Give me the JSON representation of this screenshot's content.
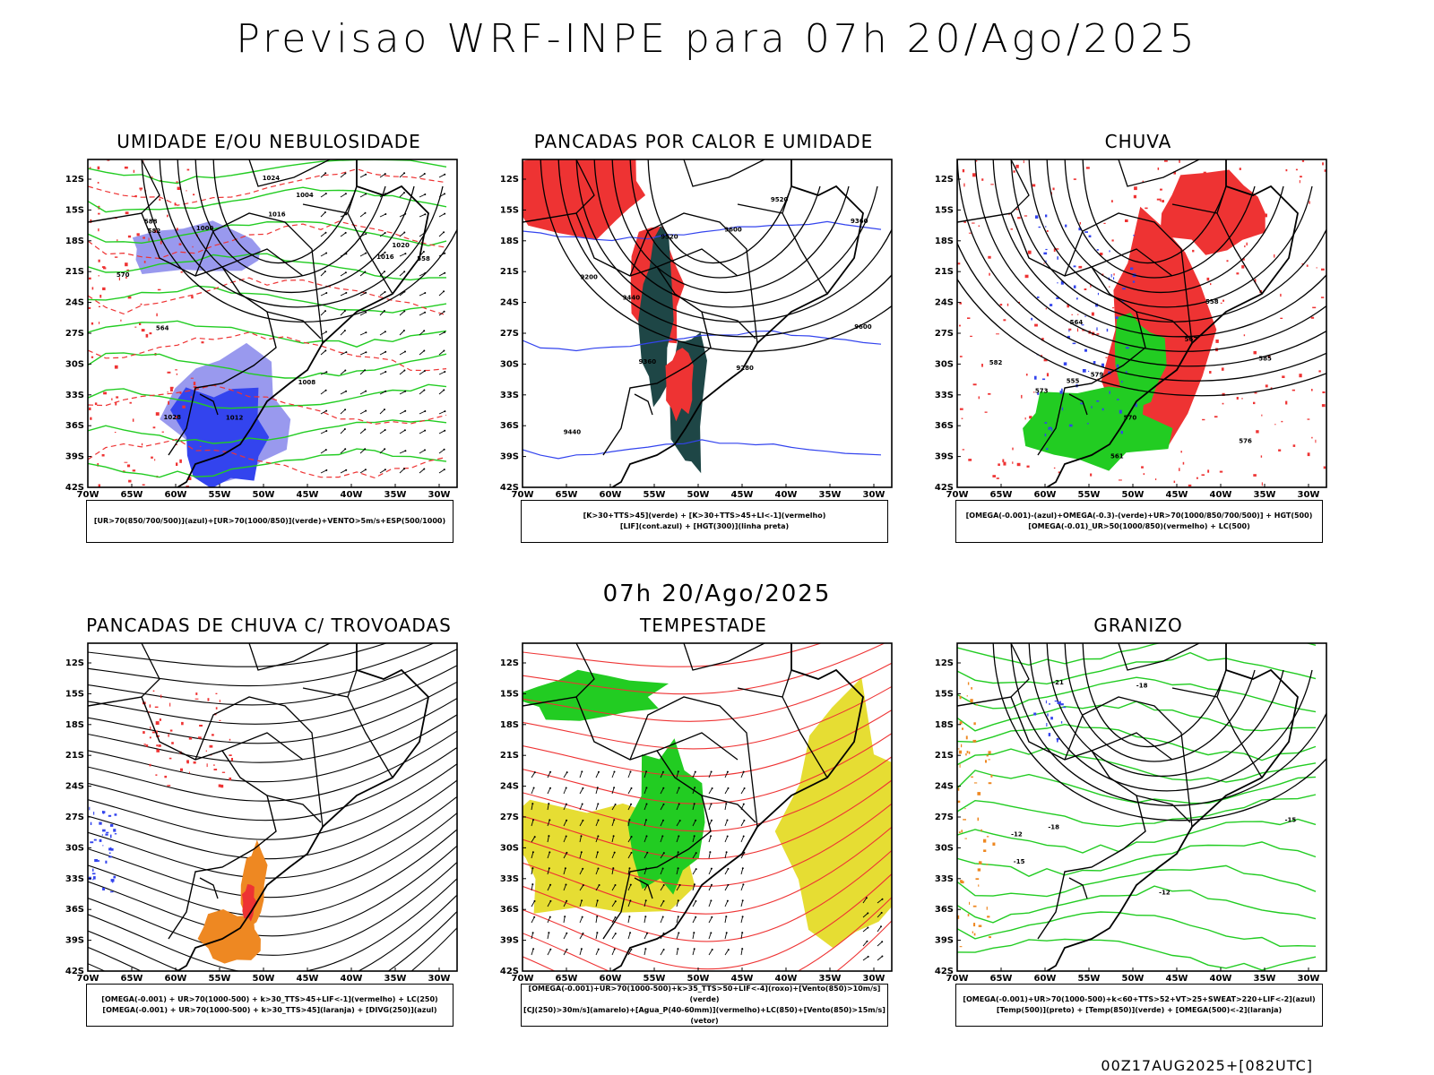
{
  "header": {
    "title": "Previsao WRF-INPE  para 07h 20/Ago/2025"
  },
  "mid_title": "07h 20/Ago/2025",
  "footer": "00Z17AUG2025+[082UTC]",
  "axes": {
    "lat_labels": [
      "12S",
      "15S",
      "18S",
      "21S",
      "24S",
      "27S",
      "30S",
      "33S",
      "36S",
      "39S",
      "42S"
    ],
    "lon_labels": [
      "70W",
      "65W",
      "60W",
      "55W",
      "50W",
      "45W",
      "40W",
      "35W",
      "30W"
    ]
  },
  "colors": {
    "green": "#22cc22",
    "blue": "#3344ee",
    "lightblue": "#9999ee",
    "red": "#ee3333",
    "orange": "#ee8822",
    "yellow": "#e6dd33",
    "darkteal": "#1e4646"
  },
  "panels": [
    {
      "title": "UMIDADE E/OU NEBULOSIDADE",
      "legend": [
        "[UR>70(850/700/500)](azul)+[UR>70(1000/850)](verde)+VENTO>5m/s+ESP(500/1000)"
      ],
      "labels": [
        "1012",
        "1016",
        "1020",
        "1024",
        "1028",
        "1008",
        "1004",
        "1000",
        "1016",
        "570",
        "564",
        "558",
        "588",
        "582"
      ]
    },
    {
      "title": "PANCADAS POR CALOR E UMIDADE",
      "legend": [
        "[K>30+TTS>45](verde) + [K>30+TTS>45+LI<-1](vermelho)",
        "[LIF](cont.azul) + [HGT(300)](linha preta)"
      ],
      "labels": [
        "9600",
        "9520",
        "9440",
        "9360",
        "9280",
        "9200",
        "9520",
        "9440",
        "9360",
        "9600"
      ]
    },
    {
      "title": "CHUVA",
      "legend": [
        "[OMEGA(-0.001)-(azul)+OMEGA(-0.3)-(verde)+UR>70(1000/850/700/500)] + HGT(500)",
        "[OMEGA(-0.01)_UR>50(1000/850)(vermelho) + LC(500)"
      ],
      "labels": [
        "576",
        "579",
        "573",
        "570",
        "567",
        "564",
        "561",
        "558",
        "555",
        "582",
        "585"
      ]
    },
    {
      "title": "PANCADAS DE CHUVA C/ TROVOADAS",
      "legend": [
        "[OMEGA(-0.001) + UR>70(1000-500) + k>30_TTS>45+LIF<-1](vermelho) + LC(250)",
        "[OMEGA(-0.001) + UR>70(1000-500) + k>30_TTS>45](laranja) + [DIVG(250)](azul)"
      ],
      "labels": []
    },
    {
      "title": "TEMPESTADE",
      "legend": [
        "[OMEGA(-0.001)+UR>70(1000-500)+k>35_TTS>50+LIF<-4](roxo)+[Vento(850)>10m/s](verde)",
        "[CJ(250)>30m/s](amarelo)+[Agua_P(40-60mm)](vermelho)+LC(850)+[Vento(850)>15m/s](vetor)"
      ],
      "labels": []
    },
    {
      "title": "GRANIZO",
      "legend": [
        "[OMEGA(-0.001)+UR>70(1000-500)+k<60+TTS>52+VT>25+SWEAT>220+LIF<-2](azul)",
        "[Temp(500)](preto) + [Temp(850)](verde) + [OMEGA(500)<-2](laranja)"
      ],
      "labels": [
        "-12",
        "-15",
        "-18",
        "-21",
        "-12",
        "-15",
        "-18"
      ]
    }
  ]
}
